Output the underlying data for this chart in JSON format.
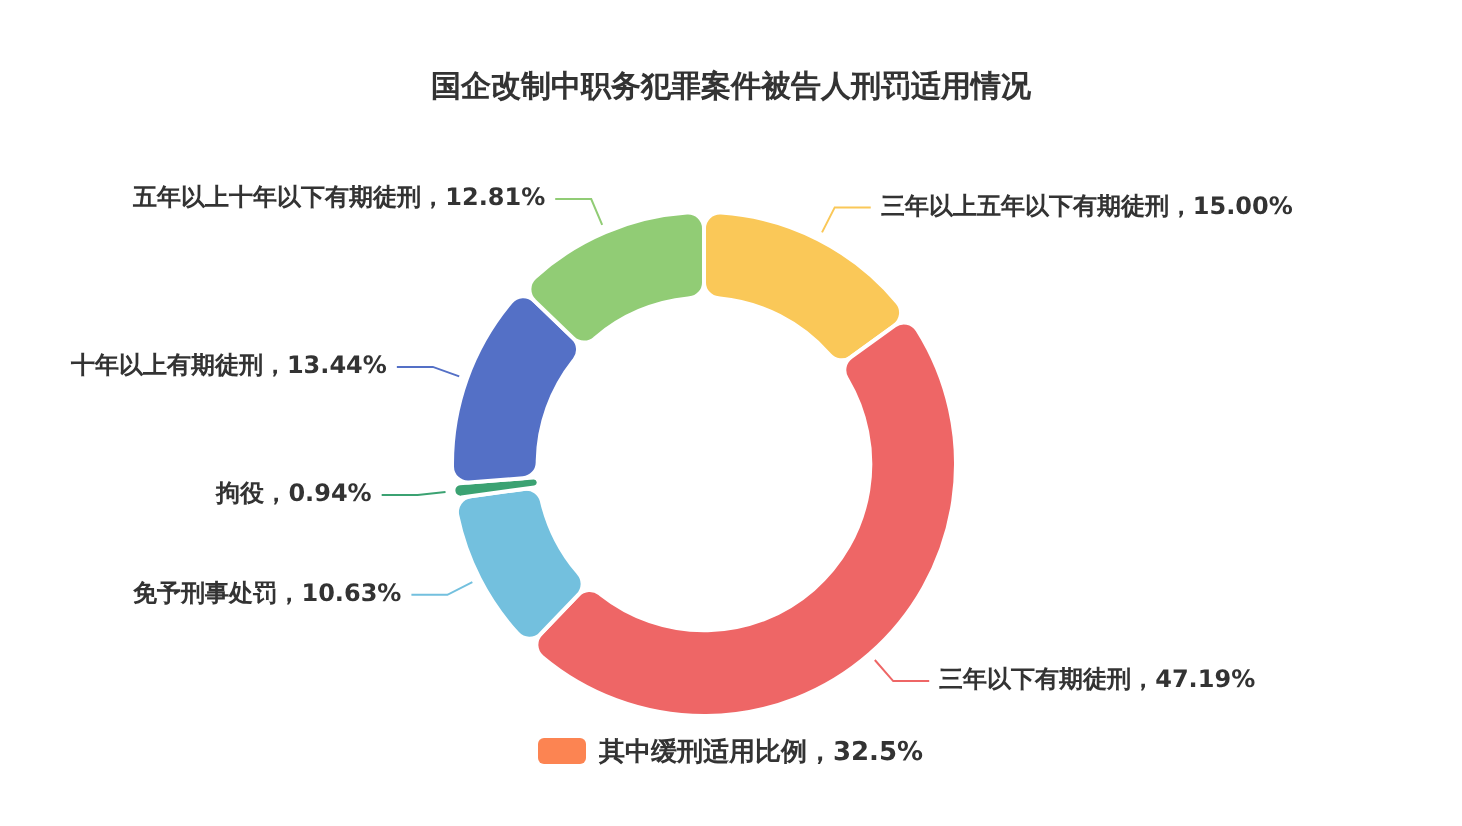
{
  "chart_data": {
    "type": "donut",
    "title": "国企改制中职务犯罪案件被告人刑罚适用情况",
    "categories": [
      "三年以上五年以下有期徒刑",
      "三年以下有期徒刑",
      "免予刑事处罚",
      "拘役",
      "十年以上有期徒刑",
      "五年以上十年以下有期徒刑"
    ],
    "values": [
      15.0,
      47.19,
      10.63,
      0.94,
      13.44,
      12.81
    ],
    "value_labels": [
      "15.00%",
      "47.19%",
      "10.63%",
      "0.94%",
      "13.44%",
      "12.81%"
    ],
    "colors": [
      "#fac858",
      "#ee6666",
      "#73c0de",
      "#3ba272",
      "#5470c6",
      "#91cc75"
    ],
    "annotations": [
      "其中缓刑适用比例，32.5%"
    ],
    "legend": false
  }
}
